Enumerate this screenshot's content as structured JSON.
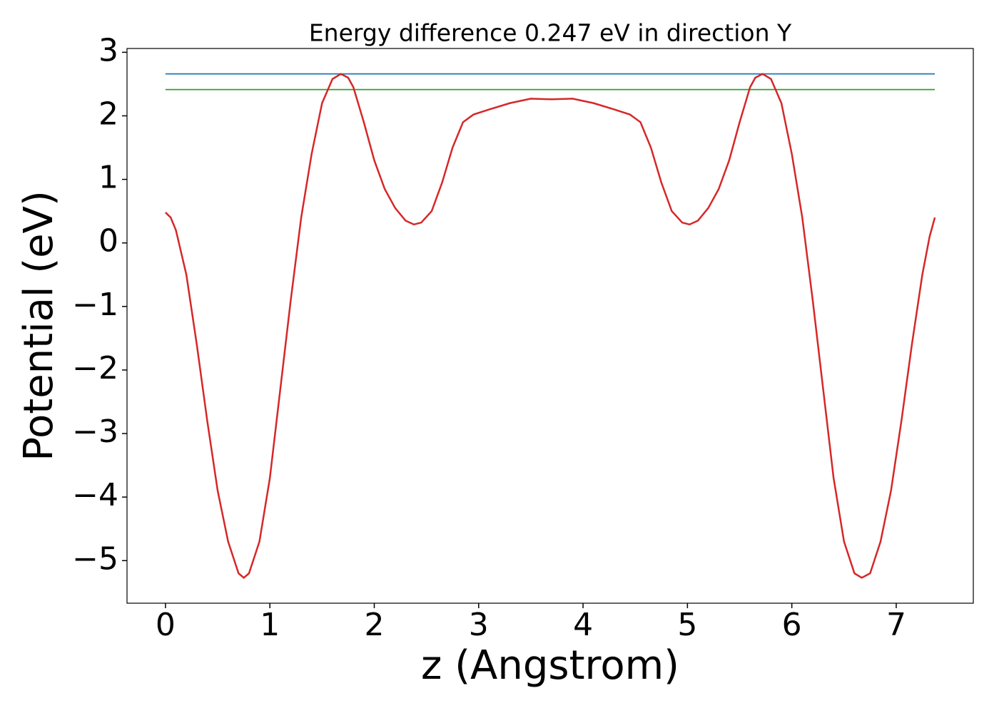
{
  "chart_data": {
    "type": "line",
    "title": "Energy difference 0.247 eV in direction Y",
    "xlabel": "z (Angstrom)",
    "ylabel": "Potential (eV)",
    "xlim": [
      -0.3685,
      7.7385
    ],
    "ylim": [
      -5.67,
      3.06
    ],
    "xticks": [
      0,
      1,
      2,
      3,
      4,
      5,
      6,
      7
    ],
    "yticks": [
      3,
      2,
      1,
      0,
      {
        "value": -1,
        "label": "−1"
      },
      {
        "value": -2,
        "label": "−2"
      },
      {
        "value": -3,
        "label": "−3"
      },
      {
        "value": -4,
        "label": "−4"
      },
      {
        "value": -5,
        "label": "−5"
      }
    ],
    "series": [
      {
        "color": "#1f77b4",
        "x": [
          0,
          7.37
        ],
        "values": [
          2.66,
          2.66
        ]
      },
      {
        "color": "#2ca02c",
        "x": [
          0,
          7.37
        ],
        "values": [
          2.413,
          2.413
        ]
      },
      {
        "color": "#d62728",
        "x": [
          0,
          0.05,
          0.1,
          0.2,
          0.3,
          0.4,
          0.5,
          0.6,
          0.7,
          0.75,
          0.8,
          0.9,
          1.0,
          1.1,
          1.2,
          1.3,
          1.4,
          1.5,
          1.6,
          1.68,
          1.75,
          1.8,
          1.9,
          2.0,
          2.1,
          2.2,
          2.3,
          2.38,
          2.45,
          2.55,
          2.65,
          2.75,
          2.85,
          2.95,
          3.1,
          3.3,
          3.5,
          3.7,
          3.9,
          4.1,
          4.3,
          4.45,
          4.55,
          4.65,
          4.75,
          4.85,
          4.95,
          5.02,
          5.1,
          5.2,
          5.3,
          5.4,
          5.5,
          5.6,
          5.65,
          5.72,
          5.8,
          5.9,
          6.0,
          6.1,
          6.2,
          6.3,
          6.4,
          6.5,
          6.6,
          6.67,
          6.75,
          6.85,
          6.95,
          7.05,
          7.15,
          7.25,
          7.32,
          7.37
        ],
        "values": [
          0.48,
          0.4,
          0.2,
          -0.5,
          -1.6,
          -2.8,
          -3.9,
          -4.7,
          -5.2,
          -5.27,
          -5.2,
          -4.7,
          -3.7,
          -2.3,
          -0.9,
          0.4,
          1.4,
          2.2,
          2.58,
          2.66,
          2.6,
          2.45,
          1.9,
          1.3,
          0.85,
          0.55,
          0.35,
          0.29,
          0.32,
          0.5,
          0.95,
          1.5,
          1.9,
          2.02,
          2.1,
          2.2,
          2.27,
          2.26,
          2.27,
          2.2,
          2.1,
          2.02,
          1.9,
          1.5,
          0.95,
          0.5,
          0.32,
          0.29,
          0.35,
          0.55,
          0.85,
          1.3,
          1.9,
          2.45,
          2.6,
          2.66,
          2.58,
          2.2,
          1.4,
          0.4,
          -0.9,
          -2.3,
          -3.7,
          -4.7,
          -5.2,
          -5.27,
          -5.2,
          -4.7,
          -3.9,
          -2.8,
          -1.6,
          -0.5,
          0.1,
          0.4
        ]
      }
    ]
  }
}
